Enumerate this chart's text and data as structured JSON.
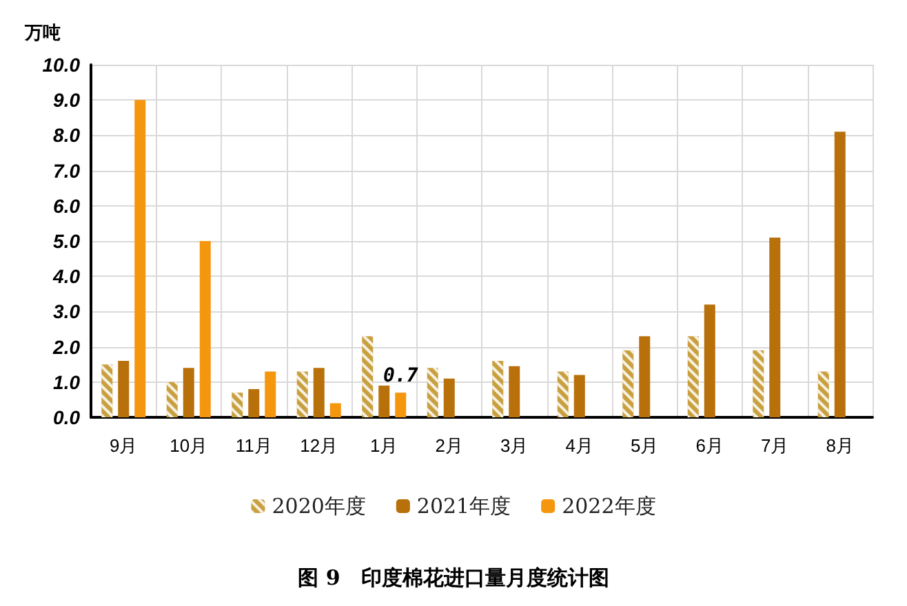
{
  "chart_data": {
    "type": "bar",
    "title": "图 9　印度棉花进口量月度统计图",
    "ylabel": "万吨",
    "categories": [
      "9月",
      "10月",
      "11月",
      "12月",
      "1月",
      "2月",
      "3月",
      "4月",
      "5月",
      "6月",
      "7月",
      "8月"
    ],
    "series": [
      {
        "name": "2020年度",
        "color": "#c9a040",
        "values": [
          1.5,
          1.0,
          0.7,
          1.3,
          2.3,
          1.4,
          1.6,
          1.3,
          1.9,
          2.3,
          1.9,
          1.3
        ]
      },
      {
        "name": "2021年度",
        "color": "#b8700a",
        "values": [
          1.6,
          1.4,
          0.8,
          1.4,
          0.9,
          1.1,
          1.45,
          1.2,
          2.3,
          3.2,
          5.1,
          8.1
        ]
      },
      {
        "name": "2022年度",
        "color": "#f5960f",
        "values": [
          9.0,
          5.0,
          1.3,
          0.4,
          0.7,
          null,
          null,
          null,
          null,
          null,
          null,
          null
        ],
        "value_labels": [
          null,
          null,
          null,
          null,
          "0.7",
          null,
          null,
          null,
          null,
          null,
          null,
          null
        ]
      }
    ],
    "ylim": [
      0,
      10
    ],
    "yticks": [
      {
        "value": 0,
        "label": "0.0"
      },
      {
        "value": 1,
        "label": "1.0"
      },
      {
        "value": 2,
        "label": "2.0"
      },
      {
        "value": 3,
        "label": "3.0"
      },
      {
        "value": 4,
        "label": "4.0"
      },
      {
        "value": 5,
        "label": "5.0"
      },
      {
        "value": 6,
        "label": "6.0"
      },
      {
        "value": 7,
        "label": "7.0"
      },
      {
        "value": 8,
        "label": "8.0"
      },
      {
        "value": 9,
        "label": "9.0"
      },
      {
        "value": 10,
        "label": "10.0"
      }
    ],
    "grid": true,
    "legend": "bottom"
  }
}
